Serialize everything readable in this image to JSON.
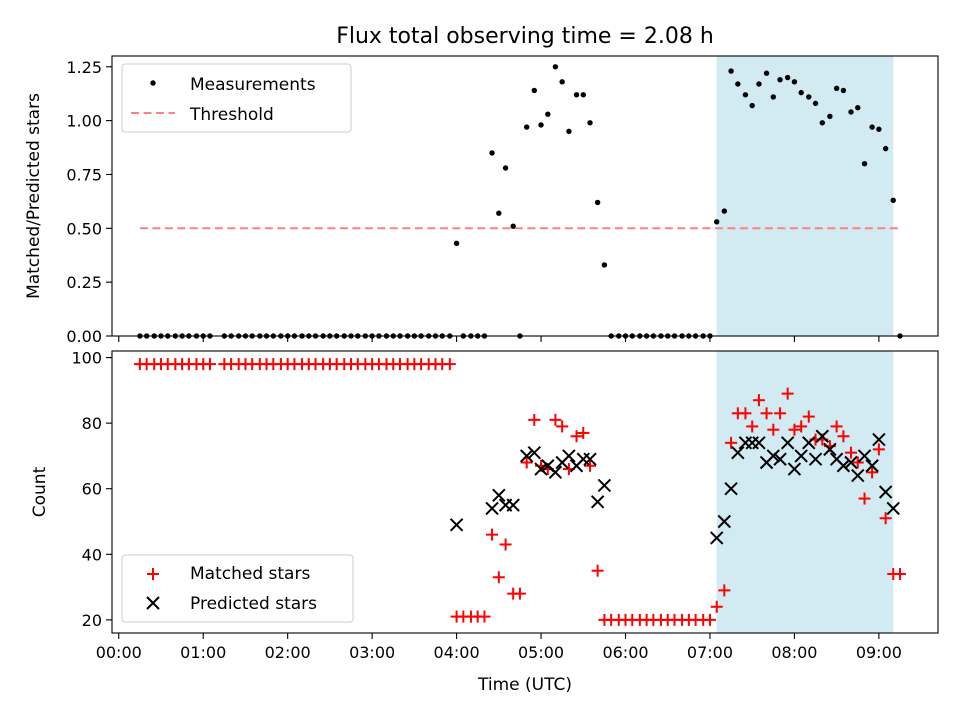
{
  "figure": {
    "title": "Flux total observing time = 2.08 h",
    "xlabel": "Time (UTC)",
    "x_ticks": [
      "00:00",
      "01:00",
      "02:00",
      "03:00",
      "04:00",
      "05:00",
      "06:00",
      "07:00",
      "08:00",
      "09:00"
    ]
  },
  "chart_data": [
    {
      "type": "scatter",
      "panel": "top",
      "ylabel": "Matched/Predicted stars",
      "ylim": [
        0,
        1.3
      ],
      "y_ticks": [
        "0.00",
        "0.25",
        "0.50",
        "0.75",
        "1.00",
        "1.25"
      ],
      "xlim_hours": [
        -0.08,
        9.7
      ],
      "shaded_interval_hours": [
        7.08,
        9.17
      ],
      "shade_color": "#add8e6",
      "legend": {
        "location": "upper-left",
        "entries": [
          "Measurements",
          "Threshold"
        ]
      },
      "threshold": {
        "name": "Threshold",
        "y": 0.5,
        "x_range_hours": [
          0.25,
          9.25
        ],
        "color": "#ff8080",
        "style": "dashed"
      },
      "series": [
        {
          "name": "Measurements",
          "marker": "dot",
          "color": "#000000",
          "points": [
            [
              0.25,
              0
            ],
            [
              0.33,
              0
            ],
            [
              0.42,
              0
            ],
            [
              0.5,
              0
            ],
            [
              0.58,
              0
            ],
            [
              0.67,
              0
            ],
            [
              0.75,
              0
            ],
            [
              0.83,
              0
            ],
            [
              0.92,
              0
            ],
            [
              1.0,
              0
            ],
            [
              1.08,
              0
            ],
            [
              1.25,
              0
            ],
            [
              1.33,
              0
            ],
            [
              1.42,
              0
            ],
            [
              1.5,
              0
            ],
            [
              1.58,
              0
            ],
            [
              1.67,
              0
            ],
            [
              1.75,
              0
            ],
            [
              1.83,
              0
            ],
            [
              1.92,
              0
            ],
            [
              2.0,
              0
            ],
            [
              2.08,
              0
            ],
            [
              2.17,
              0
            ],
            [
              2.25,
              0
            ],
            [
              2.33,
              0
            ],
            [
              2.42,
              0
            ],
            [
              2.5,
              0
            ],
            [
              2.58,
              0
            ],
            [
              2.67,
              0
            ],
            [
              2.75,
              0
            ],
            [
              2.83,
              0
            ],
            [
              2.92,
              0
            ],
            [
              3.0,
              0
            ],
            [
              3.08,
              0
            ],
            [
              3.17,
              0
            ],
            [
              3.25,
              0
            ],
            [
              3.33,
              0
            ],
            [
              3.42,
              0
            ],
            [
              3.5,
              0
            ],
            [
              3.58,
              0
            ],
            [
              3.67,
              0
            ],
            [
              3.75,
              0
            ],
            [
              3.83,
              0
            ],
            [
              3.92,
              0
            ],
            [
              4.0,
              0.43
            ],
            [
              4.08,
              0
            ],
            [
              4.17,
              0
            ],
            [
              4.25,
              0
            ],
            [
              4.33,
              0
            ],
            [
              4.42,
              0.85
            ],
            [
              4.5,
              0.57
            ],
            [
              4.58,
              0.78
            ],
            [
              4.67,
              0.51
            ],
            [
              4.75,
              0
            ],
            [
              4.83,
              0.97
            ],
            [
              4.92,
              1.14
            ],
            [
              5.0,
              0.98
            ],
            [
              5.08,
              1.03
            ],
            [
              5.17,
              1.25
            ],
            [
              5.25,
              1.18
            ],
            [
              5.33,
              0.95
            ],
            [
              5.42,
              1.12
            ],
            [
              5.5,
              1.12
            ],
            [
              5.58,
              0.99
            ],
            [
              5.67,
              0.62
            ],
            [
              5.75,
              0.33
            ],
            [
              5.83,
              0
            ],
            [
              5.92,
              0
            ],
            [
              6.0,
              0
            ],
            [
              6.08,
              0
            ],
            [
              6.17,
              0
            ],
            [
              6.25,
              0
            ],
            [
              6.33,
              0
            ],
            [
              6.42,
              0
            ],
            [
              6.5,
              0
            ],
            [
              6.58,
              0
            ],
            [
              6.67,
              0
            ],
            [
              6.75,
              0
            ],
            [
              6.83,
              0
            ],
            [
              6.92,
              0
            ],
            [
              7.0,
              0
            ],
            [
              7.08,
              0.53
            ],
            [
              7.17,
              0.58
            ],
            [
              7.25,
              1.23
            ],
            [
              7.33,
              1.17
            ],
            [
              7.42,
              1.12
            ],
            [
              7.5,
              1.07
            ],
            [
              7.58,
              1.17
            ],
            [
              7.67,
              1.22
            ],
            [
              7.75,
              1.11
            ],
            [
              7.83,
              1.19
            ],
            [
              7.92,
              1.2
            ],
            [
              8.0,
              1.18
            ],
            [
              8.08,
              1.13
            ],
            [
              8.17,
              1.11
            ],
            [
              8.25,
              1.08
            ],
            [
              8.33,
              0.99
            ],
            [
              8.42,
              1.02
            ],
            [
              8.5,
              1.15
            ],
            [
              8.58,
              1.14
            ],
            [
              8.67,
              1.04
            ],
            [
              8.75,
              1.06
            ],
            [
              8.83,
              0.8
            ],
            [
              8.92,
              0.97
            ],
            [
              9.0,
              0.96
            ],
            [
              9.08,
              0.87
            ],
            [
              9.17,
              0.63
            ],
            [
              9.25,
              0
            ]
          ]
        }
      ]
    },
    {
      "type": "scatter",
      "panel": "bottom",
      "ylabel": "Count",
      "ylim": [
        16,
        102
      ],
      "y_ticks": [
        "20",
        "40",
        "60",
        "80",
        "100"
      ],
      "xlim_hours": [
        -0.08,
        9.7
      ],
      "shaded_interval_hours": [
        7.08,
        9.17
      ],
      "shade_color": "#add8e6",
      "legend": {
        "location": "lower-left",
        "entries": [
          "Matched stars",
          "Predicted stars"
        ]
      },
      "series": [
        {
          "name": "Matched stars",
          "marker": "plus",
          "color": "#ff0000",
          "points": [
            [
              0.25,
              98
            ],
            [
              0.33,
              98
            ],
            [
              0.42,
              98
            ],
            [
              0.5,
              98
            ],
            [
              0.58,
              98
            ],
            [
              0.67,
              98
            ],
            [
              0.75,
              98
            ],
            [
              0.83,
              98
            ],
            [
              0.92,
              98
            ],
            [
              1.0,
              98
            ],
            [
              1.08,
              98
            ],
            [
              1.25,
              98
            ],
            [
              1.33,
              98
            ],
            [
              1.42,
              98
            ],
            [
              1.5,
              98
            ],
            [
              1.58,
              98
            ],
            [
              1.67,
              98
            ],
            [
              1.75,
              98
            ],
            [
              1.83,
              98
            ],
            [
              1.92,
              98
            ],
            [
              2.0,
              98
            ],
            [
              2.08,
              98
            ],
            [
              2.17,
              98
            ],
            [
              2.25,
              98
            ],
            [
              2.33,
              98
            ],
            [
              2.42,
              98
            ],
            [
              2.5,
              98
            ],
            [
              2.58,
              98
            ],
            [
              2.67,
              98
            ],
            [
              2.75,
              98
            ],
            [
              2.83,
              98
            ],
            [
              2.92,
              98
            ],
            [
              3.0,
              98
            ],
            [
              3.08,
              98
            ],
            [
              3.17,
              98
            ],
            [
              3.25,
              98
            ],
            [
              3.33,
              98
            ],
            [
              3.42,
              98
            ],
            [
              3.5,
              98
            ],
            [
              3.58,
              98
            ],
            [
              3.67,
              98
            ],
            [
              3.75,
              98
            ],
            [
              3.83,
              98
            ],
            [
              3.92,
              98
            ],
            [
              4.0,
              21
            ],
            [
              4.08,
              21
            ],
            [
              4.17,
              21
            ],
            [
              4.25,
              21
            ],
            [
              4.33,
              21
            ],
            [
              4.42,
              46
            ],
            [
              4.5,
              33
            ],
            [
              4.58,
              43
            ],
            [
              4.67,
              28
            ],
            [
              4.75,
              28
            ],
            [
              4.83,
              68
            ],
            [
              4.92,
              81
            ],
            [
              5.0,
              67
            ],
            [
              5.08,
              66
            ],
            [
              5.17,
              81
            ],
            [
              5.25,
              79
            ],
            [
              5.33,
              66
            ],
            [
              5.42,
              76
            ],
            [
              5.5,
              77
            ],
            [
              5.58,
              67
            ],
            [
              5.67,
              35
            ],
            [
              5.75,
              20
            ],
            [
              5.83,
              20
            ],
            [
              5.92,
              20
            ],
            [
              6.0,
              20
            ],
            [
              6.08,
              20
            ],
            [
              6.17,
              20
            ],
            [
              6.25,
              20
            ],
            [
              6.33,
              20
            ],
            [
              6.42,
              20
            ],
            [
              6.5,
              20
            ],
            [
              6.58,
              20
            ],
            [
              6.67,
              20
            ],
            [
              6.75,
              20
            ],
            [
              6.83,
              20
            ],
            [
              6.92,
              20
            ],
            [
              7.0,
              20
            ],
            [
              7.08,
              24
            ],
            [
              7.17,
              29
            ],
            [
              7.25,
              74
            ],
            [
              7.33,
              83
            ],
            [
              7.42,
              83
            ],
            [
              7.5,
              79
            ],
            [
              7.58,
              87
            ],
            [
              7.67,
              83
            ],
            [
              7.75,
              78
            ],
            [
              7.83,
              83
            ],
            [
              7.92,
              89
            ],
            [
              8.0,
              78
            ],
            [
              8.08,
              79
            ],
            [
              8.17,
              82
            ],
            [
              8.25,
              75
            ],
            [
              8.33,
              75
            ],
            [
              8.42,
              73
            ],
            [
              8.5,
              79
            ],
            [
              8.58,
              76
            ],
            [
              8.67,
              71
            ],
            [
              8.75,
              68
            ],
            [
              8.83,
              57
            ],
            [
              8.92,
              65
            ],
            [
              9.0,
              72
            ],
            [
              9.08,
              51
            ],
            [
              9.17,
              34
            ],
            [
              9.25,
              34
            ]
          ]
        },
        {
          "name": "Predicted stars",
          "marker": "x",
          "color": "#000000",
          "points": [
            [
              4.0,
              49
            ],
            [
              4.42,
              54
            ],
            [
              4.5,
              58
            ],
            [
              4.58,
              55
            ],
            [
              4.67,
              55
            ],
            [
              4.83,
              70
            ],
            [
              4.92,
              71
            ],
            [
              5.0,
              66
            ],
            [
              5.08,
              67
            ],
            [
              5.17,
              65
            ],
            [
              5.25,
              68
            ],
            [
              5.33,
              70
            ],
            [
              5.42,
              67
            ],
            [
              5.5,
              69
            ],
            [
              5.58,
              69
            ],
            [
              5.67,
              56
            ],
            [
              5.75,
              61
            ],
            [
              7.08,
              45
            ],
            [
              7.17,
              50
            ],
            [
              7.25,
              60
            ],
            [
              7.33,
              71
            ],
            [
              7.42,
              74
            ],
            [
              7.5,
              74
            ],
            [
              7.58,
              74
            ],
            [
              7.67,
              68
            ],
            [
              7.75,
              70
            ],
            [
              7.83,
              69
            ],
            [
              7.92,
              74
            ],
            [
              8.0,
              66
            ],
            [
              8.08,
              70
            ],
            [
              8.17,
              74
            ],
            [
              8.25,
              69
            ],
            [
              8.33,
              76
            ],
            [
              8.42,
              72
            ],
            [
              8.5,
              69
            ],
            [
              8.58,
              67
            ],
            [
              8.67,
              68
            ],
            [
              8.75,
              64
            ],
            [
              8.83,
              70
            ],
            [
              8.92,
              67
            ],
            [
              9.0,
              75
            ],
            [
              9.08,
              59
            ],
            [
              9.17,
              54
            ]
          ]
        }
      ]
    }
  ]
}
